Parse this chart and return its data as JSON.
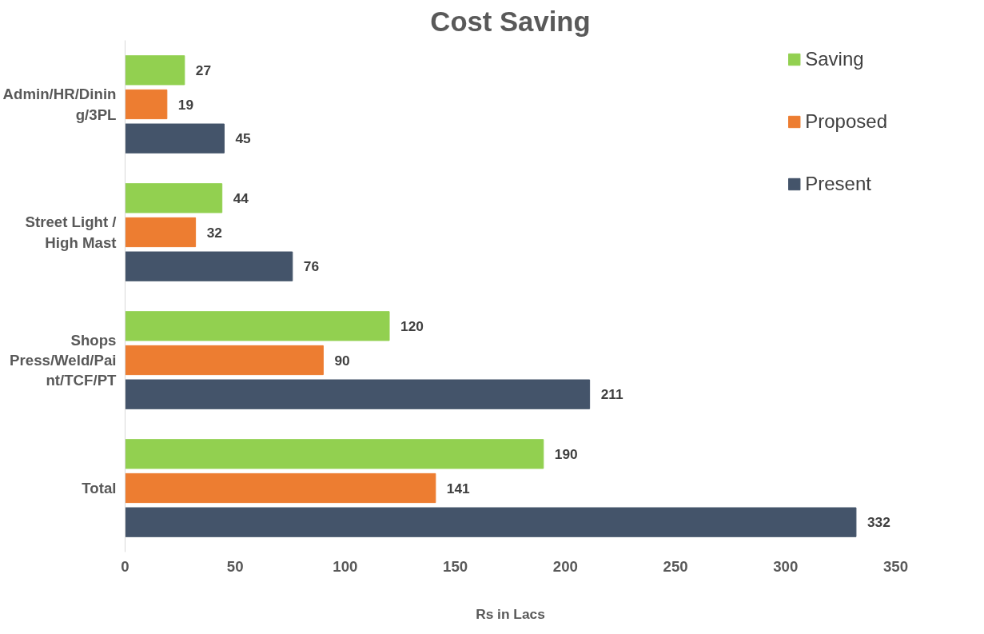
{
  "chart_data": {
    "type": "bar",
    "orientation": "horizontal",
    "title": "Cost Saving",
    "xlabel": "Rs in Lacs",
    "categories": [
      "Admin/HR/Dining/3PL",
      "Street Light / High Mast",
      "Shops Press/Weld/Paint/TCF/PT",
      "Total"
    ],
    "series": [
      {
        "name": "Saving",
        "color": "#92d050",
        "values": [
          27,
          44,
          120,
          190
        ]
      },
      {
        "name": "Proposed",
        "color": "#ed7d31",
        "values": [
          19,
          32,
          90,
          141
        ]
      },
      {
        "name": "Present",
        "color": "#44546a",
        "values": [
          45,
          76,
          211,
          332
        ]
      }
    ],
    "xlim": [
      0,
      350
    ],
    "xticks": [
      0,
      50,
      100,
      150,
      200,
      250,
      300,
      350
    ],
    "grid": false,
    "legend": "right",
    "data_labels": true
  }
}
